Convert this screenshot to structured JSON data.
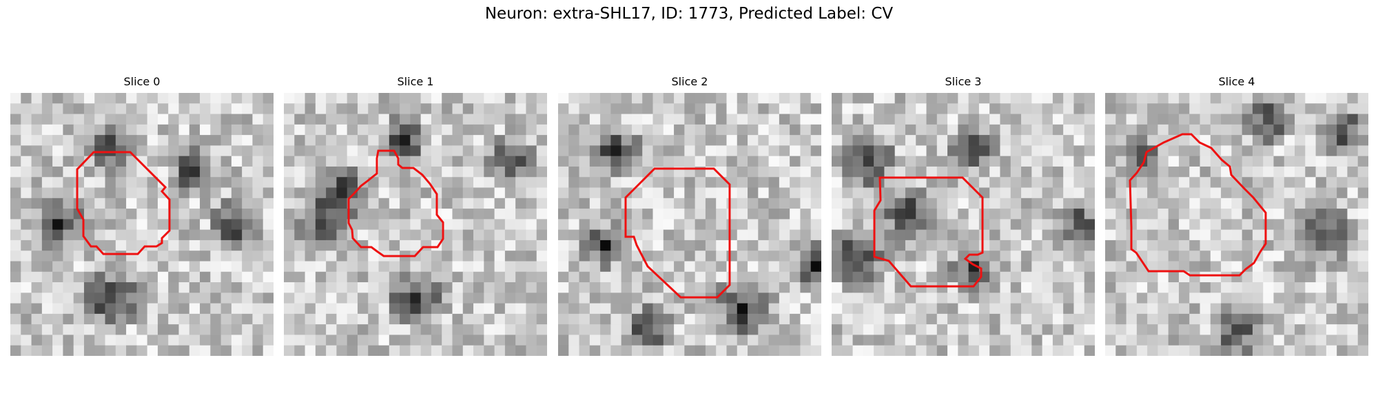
{
  "figure": {
    "title": "Neuron: extra-SHL17, ID: 1773, Predicted Label: CV"
  },
  "panels": [
    {
      "title": "Slice 0"
    },
    {
      "title": "Slice 1"
    },
    {
      "title": "Slice 2"
    },
    {
      "title": "Slice 3"
    },
    {
      "title": "Slice 4"
    }
  ],
  "colors": {
    "contour": "#ee1111",
    "background": "#ffffff",
    "colormap": "grayscale"
  }
}
